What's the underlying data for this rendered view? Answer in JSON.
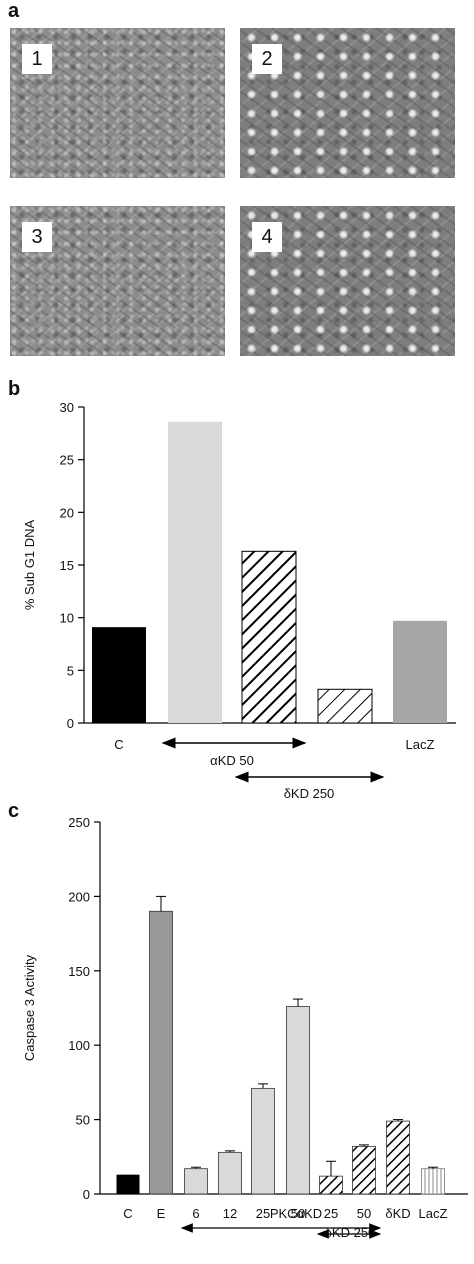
{
  "panels": {
    "a": "a",
    "b": "b",
    "c": "c"
  },
  "micrographs": [
    {
      "label": "1"
    },
    {
      "label": "2"
    },
    {
      "label": "3"
    },
    {
      "label": "4"
    }
  ],
  "chart_data": [
    {
      "type": "bar",
      "panel": "b",
      "ylabel": "% Sub G1 DNA",
      "ylim": [
        0,
        30
      ],
      "yticks": [
        0,
        5,
        10,
        15,
        20,
        25,
        30
      ],
      "categories": [
        "C",
        "",
        "",
        "",
        "LacZ"
      ],
      "values": [
        9.1,
        28.6,
        16.3,
        3.2,
        9.7
      ],
      "fills": [
        "#000000",
        "#d9d9d9",
        "hatch-dense",
        "hatch-sparse",
        "#a6a6a6"
      ],
      "annotations": [
        "αKD 50",
        "δKD 250"
      ]
    },
    {
      "type": "bar",
      "panel": "c",
      "ylabel": "Caspase 3 Activity",
      "ylim": [
        0,
        250
      ],
      "yticks": [
        0,
        50,
        100,
        150,
        200,
        250
      ],
      "categories": [
        "C",
        "E",
        "6",
        "12",
        "25",
        "50",
        "25",
        "50",
        "δKD",
        "LacZ"
      ],
      "values": [
        13,
        190,
        17,
        28,
        71,
        126,
        12,
        32,
        49,
        17
      ],
      "errors": [
        0,
        10,
        1,
        1,
        3,
        5,
        10,
        1,
        1,
        1
      ],
      "fills": [
        "#000000",
        "#999999",
        "#d9d9d9",
        "#d9d9d9",
        "#d9d9d9",
        "#d9d9d9",
        "hatch-dense",
        "hatch-dense",
        "hatch-dense",
        "vstripes"
      ],
      "annotations": [
        "PKCαKD",
        "δKD 250"
      ]
    }
  ]
}
